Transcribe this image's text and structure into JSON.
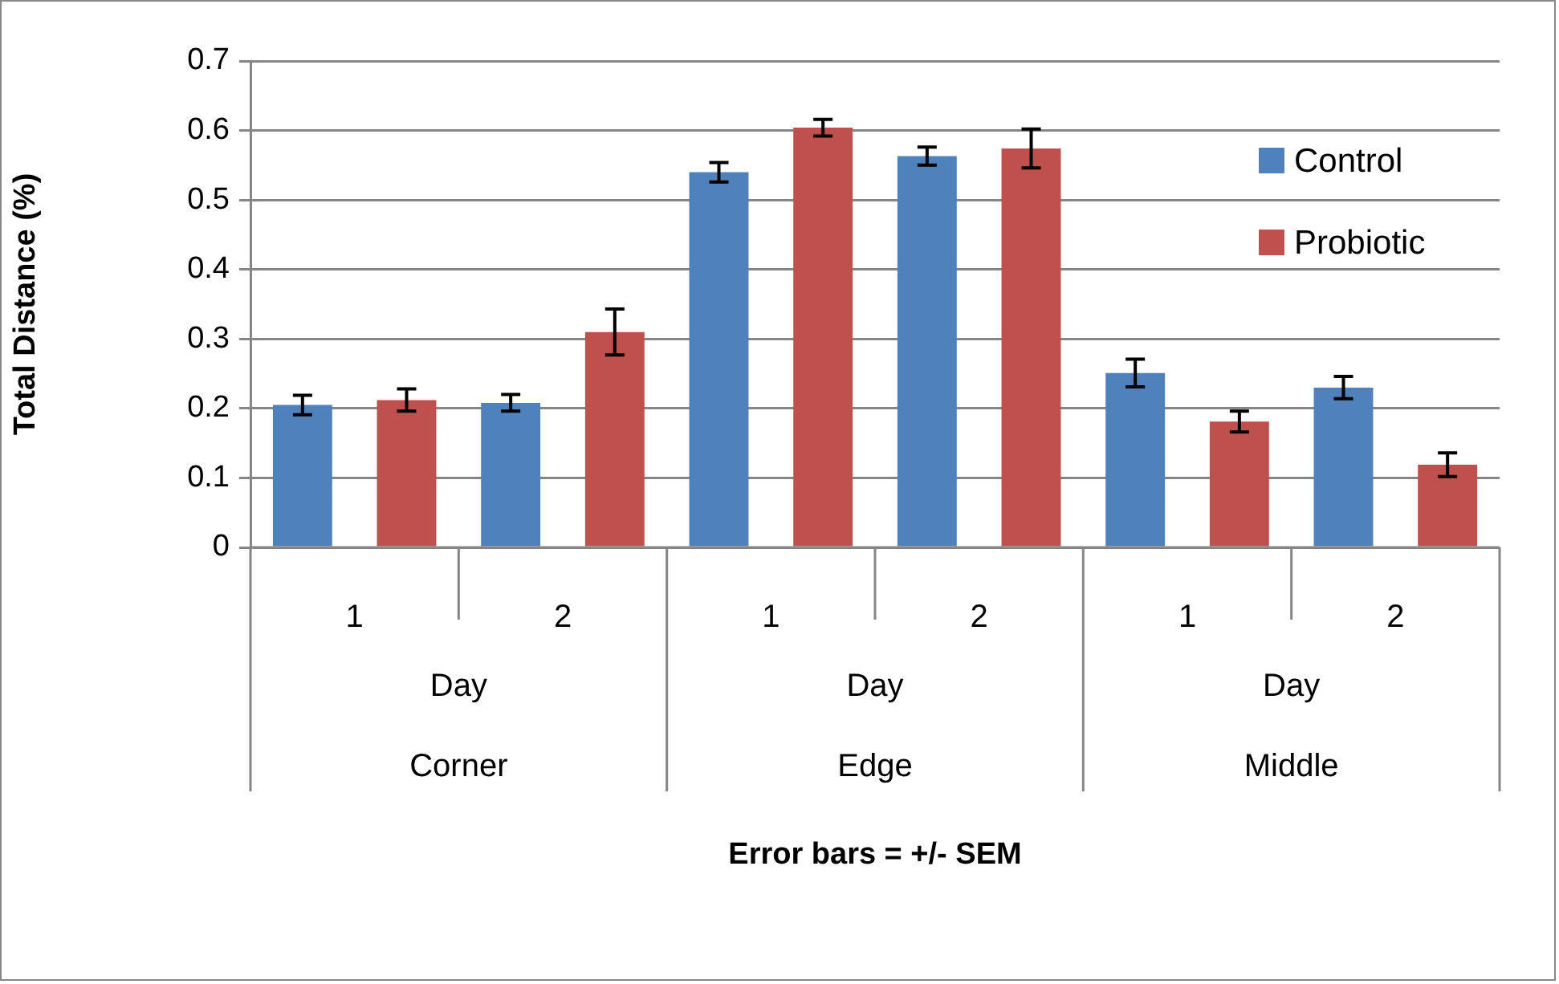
{
  "chart_data": {
    "type": "bar",
    "ylabel": "Total Distance (%)",
    "categories": [
      "1",
      "2",
      "1",
      "2",
      "1",
      "2"
    ],
    "series": [
      {
        "name": "Control",
        "color": "#4f81bd",
        "values": [
          0.205,
          0.208,
          0.54,
          0.563,
          0.251,
          0.23
        ],
        "errors": [
          0.014,
          0.012,
          0.014,
          0.013,
          0.02,
          0.016
        ]
      },
      {
        "name": "Probiotic",
        "color": "#c0504d",
        "values": [
          0.212,
          0.31,
          0.604,
          0.574,
          0.181,
          0.119
        ],
        "errors": [
          0.016,
          0.033,
          0.012,
          0.028,
          0.015,
          0.017
        ]
      }
    ],
    "ylim": [
      0,
      0.7
    ],
    "yticks": [
      0,
      0.1,
      0.2,
      0.3,
      0.4,
      0.5,
      0.6,
      0.7
    ],
    "grid": "y",
    "legend": "top right",
    "annotations": [
      "Day",
      "Day",
      "Day",
      "Corner",
      "Edge",
      "Middle",
      "Error bars = +/- SEM"
    ]
  }
}
